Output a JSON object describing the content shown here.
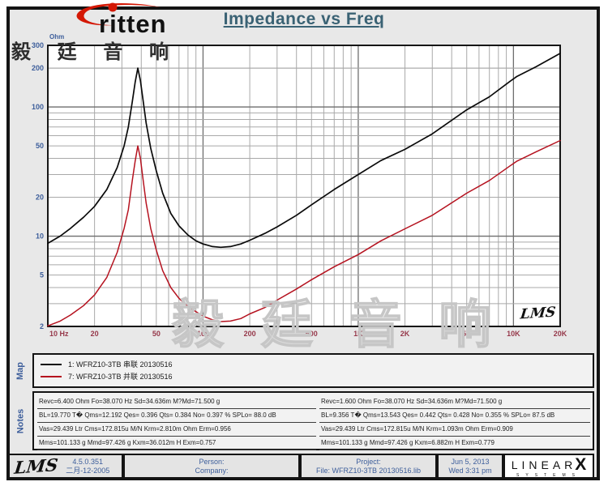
{
  "header": {
    "logo_text": "ritten",
    "logo_cn": "毅 廷 音 响",
    "title": "Impedance vs Freq"
  },
  "chart_data": {
    "type": "line",
    "title": "Impedance vs Freq",
    "grid": "log-log, on",
    "x_axis": {
      "label": "Hz",
      "scale": "log",
      "min": 10,
      "max": 20000,
      "tick_values": [
        10,
        20,
        50,
        100,
        200,
        500,
        1000,
        2000,
        5000,
        10000,
        20000
      ],
      "tick_labels": [
        "10 Hz",
        "20",
        "50",
        "100",
        "200",
        "500",
        "1K",
        "2K",
        "5K",
        "10K",
        "20K"
      ],
      "tick_color": "#96384a"
    },
    "y_axis": {
      "label": "Ohm",
      "scale": "log",
      "min": 2,
      "max": 300,
      "tick_values": [
        300,
        200,
        100,
        50,
        20,
        10,
        5,
        2
      ],
      "tick_labels": [
        "300",
        "200",
        "100",
        "50",
        "20",
        "10",
        "5",
        "2"
      ],
      "tick_color": "#3d5e9b"
    },
    "series": [
      {
        "name": "1: WFRZ10-3TB 串联 20130516",
        "color": "#0a0a0a",
        "x": [
          10,
          12,
          14,
          17,
          20,
          24,
          28,
          31,
          33,
          35,
          36.5,
          38,
          39.5,
          41,
          43,
          46,
          50,
          55,
          62,
          70,
          80,
          90,
          100,
          115,
          130,
          150,
          175,
          200,
          250,
          300,
          400,
          500,
          700,
          1000,
          1400,
          2000,
          3000,
          5000,
          7000,
          9500,
          10500,
          14000,
          20000
        ],
        "values": [
          8.8,
          10,
          11.5,
          14,
          17,
          23,
          34,
          50,
          70,
          110,
          155,
          200,
          160,
          115,
          75,
          48,
          32,
          21.5,
          15,
          12,
          10.2,
          9.2,
          8.7,
          8.3,
          8.2,
          8.3,
          8.7,
          9.3,
          10.5,
          11.8,
          14.5,
          17.5,
          23,
          30,
          38.5,
          47,
          62,
          95,
          120,
          158,
          172,
          205,
          260
        ]
      },
      {
        "name": "7: WFRZ10-3TB 并联 20130516",
        "color": "#b5121f",
        "x": [
          10,
          12,
          14,
          17,
          20,
          24,
          28,
          31,
          33,
          35,
          36.5,
          38,
          39.5,
          41,
          43,
          46,
          50,
          55,
          62,
          70,
          80,
          90,
          100,
          115,
          130,
          150,
          175,
          200,
          250,
          300,
          400,
          500,
          700,
          1000,
          1400,
          2000,
          3000,
          5000,
          7000,
          9500,
          10500,
          14000,
          20000
        ],
        "values": [
          2.02,
          2.2,
          2.45,
          2.9,
          3.5,
          4.8,
          7.5,
          11.5,
          16,
          27,
          38,
          50,
          40,
          28,
          18,
          11.5,
          7.8,
          5.4,
          4.0,
          3.3,
          2.85,
          2.6,
          2.4,
          2.25,
          2.18,
          2.2,
          2.3,
          2.5,
          2.8,
          3.2,
          3.9,
          4.6,
          5.8,
          7.2,
          9.2,
          11.4,
          14.5,
          21.5,
          27,
          35,
          38,
          45,
          55
        ]
      }
    ],
    "annotations": {
      "plot_logo": "LMS",
      "watermark": "毅 廷 音 响"
    },
    "legend_position": "below (Map panel)"
  },
  "map": {
    "label": "Map",
    "legend": [
      {
        "label": "1: WFRZ10-3TB 串联 20130516",
        "color": "#0a0a0a"
      },
      {
        "label": "7: WFRZ10-3TB 并联 20130516",
        "color": "#b5121f"
      }
    ]
  },
  "notes": {
    "label": "Notes",
    "left": [
      "Revc=6.400 Ohm  Fo=38.070 Hz  Sd=34.636m M?Md=71.500 g",
      "BL=19.770 T�  Qms=12.192  Qes= 0.396  Qts= 0.384  No= 0.397 %  SPLo= 88.0 dB",
      "Vas=29.439 Ltr  Cms=172.815u M/N  Krm=2.810m Ohm  Erm=0.956",
      "Mms=101.133 g  Mmd=97.426 g  Kxm=36.012m H  Exm=0.757"
    ],
    "right": [
      "Revc=1.600 Ohm  Fo=38.070 Hz  Sd=34.636m M?Md=71.500 g",
      "BL=9.356 T�  Qms=13.543  Qes= 0.442  Qts= 0.428  No= 0.355 %  SPLo= 87.5 dB",
      "Vas=29.439 Ltr  Cms=172.815u M/N  Krm=1.093m Ohm  Erm=0.909",
      "Mms=101.133 g  Mmd=97.426 g  Kxm=6.882m H  Exm=0.779"
    ]
  },
  "footer": {
    "lms_logo": "LMS",
    "version": "4.5.0.351",
    "date_cn": "二月-12-2005",
    "person_label": "Person:",
    "company_label": "Company:",
    "project_label": "Project:",
    "file_label": "File: WFRZ10-3TB 20130516.lib",
    "datetime_line1": "Jun  5, 2013",
    "datetime_line2": "Wed  3:31 pm",
    "brand_linear": "LINEAR",
    "brand_x": "X",
    "brand_systems": "SYSTEMS"
  }
}
